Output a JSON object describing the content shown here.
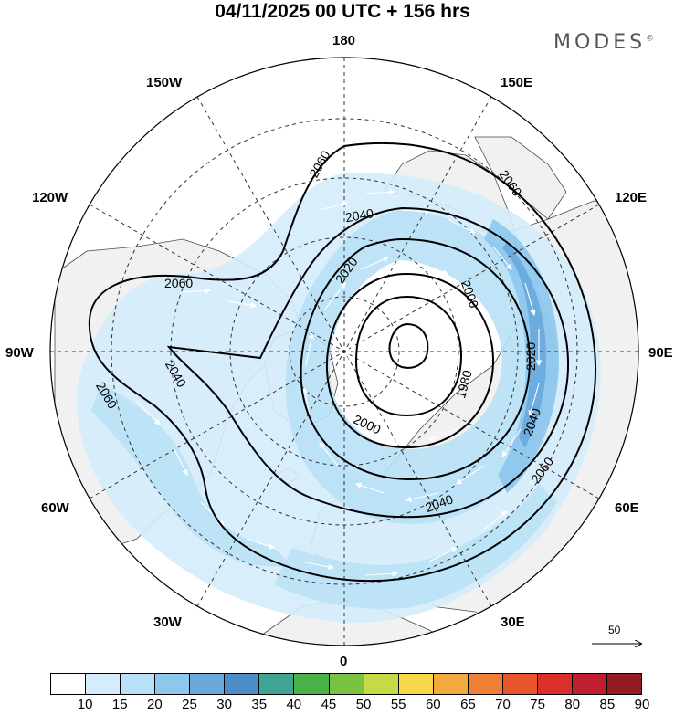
{
  "header": {
    "title": "04/11/2025  00 UTC  + 156 hrs",
    "brand": "MODES",
    "brand_mark": "©"
  },
  "longitude_labels": {
    "top": "180",
    "bottom": "0",
    "left": "90W",
    "right": "90E",
    "nw_upper": "150W",
    "nw_lower": "120W",
    "sw_upper": "60W",
    "sw_lower": "30W",
    "ne_upper": "150E",
    "ne_lower": "120E",
    "se_upper": "60E",
    "se_lower": "30E"
  },
  "contours": {
    "c2060_a": "2060",
    "c2060_b": "2060",
    "c2060_c": "2060",
    "c2060_d": "2060",
    "c2060_e": "2060",
    "c2040_a": "2040",
    "c2040_b": "2040",
    "c2040_c": "2040",
    "c2040_d": "2040",
    "c2020_a": "2020",
    "c2020_b": "2020",
    "c2000_a": "2000",
    "c2000_b": "2000",
    "c1980": "1980"
  },
  "reference_vector": {
    "label": "50"
  },
  "colorbar": {
    "ticks": [
      "10",
      "15",
      "20",
      "25",
      "30",
      "35",
      "40",
      "45",
      "50",
      "55",
      "60",
      "65",
      "70",
      "75",
      "80",
      "85",
      "90"
    ],
    "colors": [
      "#ffffff",
      "#d5ecfb",
      "#b8e0f6",
      "#8dc7ec",
      "#69a9dc",
      "#4d8ec8",
      "#3ea595",
      "#48b248",
      "#79c242",
      "#c6da45",
      "#f6d84a",
      "#f2a93f",
      "#ee7f34",
      "#e8552c",
      "#db2f2a",
      "#be1e2d",
      "#931b24"
    ]
  }
}
